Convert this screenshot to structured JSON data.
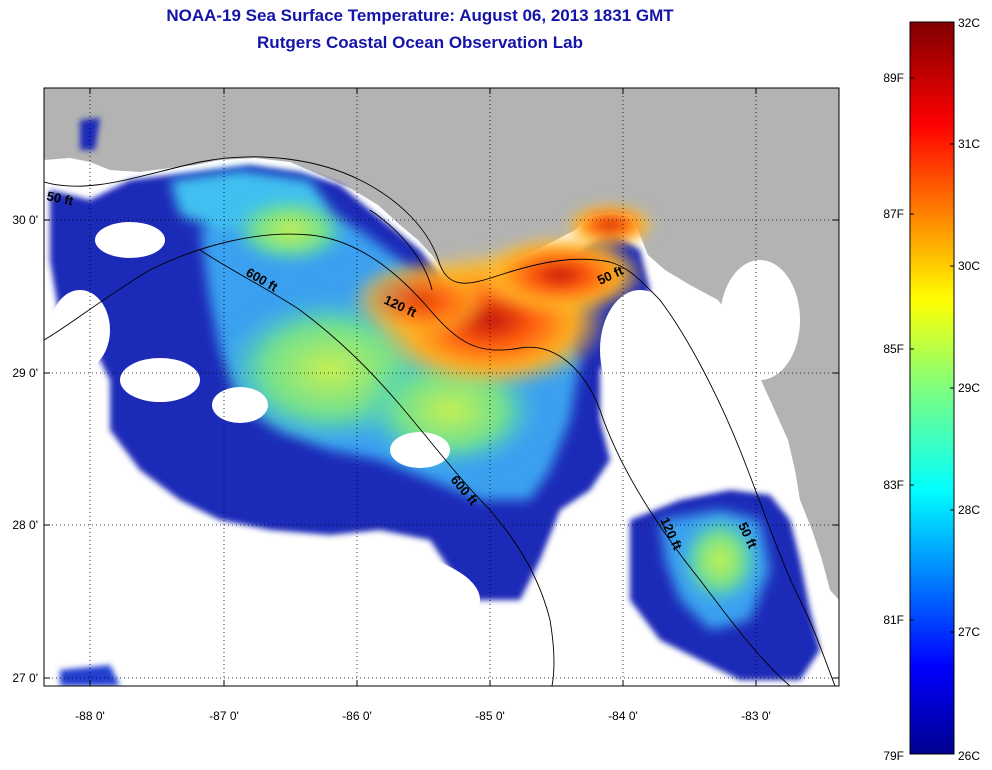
{
  "title": {
    "line1": "NOAA-19 Sea Surface Temperature:  August 06, 2013 1831 GMT",
    "line2": "Rutgers Coastal Ocean Observation Lab"
  },
  "map": {
    "lon_ticks": [
      "-88 0'",
      "-87 0'",
      "-86 0'",
      "-85 0'",
      "-84 0'",
      "-83 0'"
    ],
    "lat_ticks": [
      "30 0'",
      "29 0'",
      "28 0'",
      "27 0'"
    ],
    "contour_labels": [
      "50 ft",
      "600 ft",
      "120 ft",
      "50 ft",
      "600 ft",
      "120 ft",
      "50 ft"
    ],
    "colors": {
      "land": "#b3b3b3",
      "no_data": "#ffffff",
      "cold": "#0a1a9a",
      "warm": "#b01010"
    }
  },
  "colorbar": {
    "celsius_labels": [
      "32C",
      "31C",
      "30C",
      "29C",
      "28C",
      "27C",
      "26C"
    ],
    "fahrenheit_labels": [
      "89F",
      "87F",
      "85F",
      "83F",
      "81F",
      "79F"
    ],
    "range_c": [
      26,
      32
    ]
  }
}
